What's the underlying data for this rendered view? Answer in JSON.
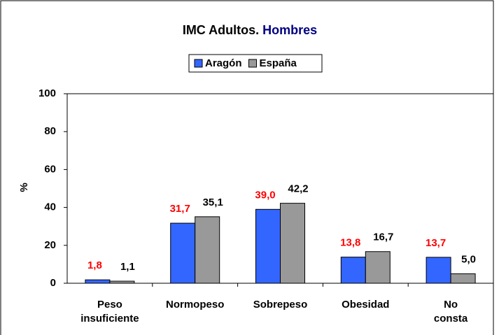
{
  "chart_data": {
    "type": "bar",
    "title": "IMC Adultos.",
    "title_highlight": "Hombres",
    "y_label": "%",
    "categories": [
      [
        "Peso",
        "insuficiente"
      ],
      [
        "Normopeso"
      ],
      [
        "Sobrepeso"
      ],
      [
        "Obesidad"
      ],
      [
        "No",
        "consta"
      ]
    ],
    "series": [
      {
        "name": "Aragón",
        "color": "#3366ff",
        "label_color": "#ff0000",
        "values": [
          1.8,
          31.7,
          39.0,
          13.8,
          13.7
        ],
        "value_labels": [
          "1,8",
          "31,7",
          "39,0",
          "13,8",
          "13,7"
        ]
      },
      {
        "name": "España",
        "color": "#999999",
        "label_color": "#000000",
        "values": [
          1.1,
          35.1,
          42.2,
          16.7,
          5.0
        ],
        "value_labels": [
          "1,1",
          "35,1",
          "42,2",
          "16,7",
          "5,0"
        ]
      }
    ],
    "ylim": [
      0,
      100
    ],
    "yticks": [
      0,
      20,
      40,
      60,
      80,
      100
    ],
    "grid": false
  }
}
